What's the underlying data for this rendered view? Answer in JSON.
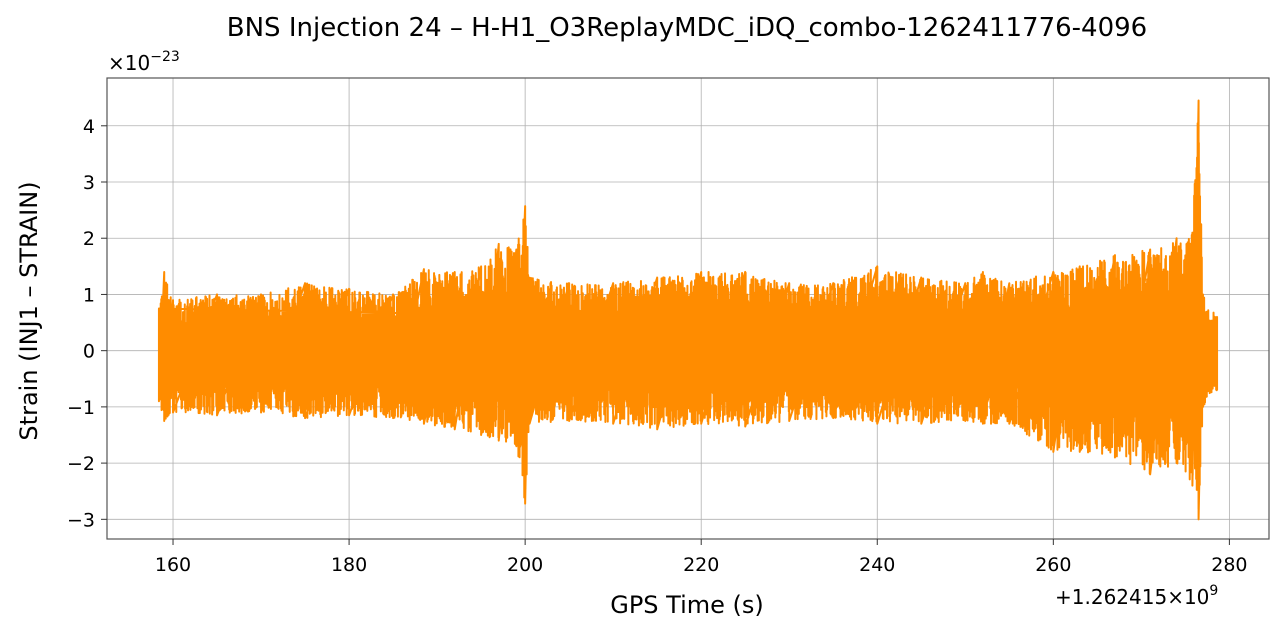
{
  "chart_data": {
    "type": "line",
    "title": "BNS Injection 24 – H-H1_O3ReplayMDC_iDQ_combo-1262411776-4096",
    "xlabel": "GPS Time (s)",
    "ylabel": "Strain (INJ1 – STRAIN)",
    "x_offset_text": "+1.262415×10^9",
    "y_scale_text": "×10^−23",
    "xlim": [
      152.5,
      284.5
    ],
    "ylim": [
      -3.35,
      4.85
    ],
    "x_ticks": [
      160,
      180,
      200,
      220,
      240,
      260,
      280
    ],
    "y_ticks": [
      -3,
      -2,
      -1,
      0,
      1,
      2,
      3,
      4
    ],
    "x_tick_labels": [
      "160",
      "180",
      "200",
      "220",
      "240",
      "260",
      "280"
    ],
    "y_tick_labels": [
      "−3",
      "−2",
      "−1",
      "0",
      "1",
      "2",
      "3",
      "4"
    ],
    "grid": true,
    "series": [
      {
        "color": "#ff8c00",
        "x_start": 158.4,
        "x_end": 278.6,
        "envelope": [
          {
            "x": 158.4,
            "upper": 0.75,
            "lower": -0.9
          },
          {
            "x": 159.0,
            "upper": 1.4,
            "lower": -1.25
          },
          {
            "x": 160.0,
            "upper": 0.9,
            "lower": -1.1
          },
          {
            "x": 165.0,
            "upper": 1.0,
            "lower": -1.15
          },
          {
            "x": 170.0,
            "upper": 1.0,
            "lower": -1.1
          },
          {
            "x": 175.0,
            "upper": 1.2,
            "lower": -1.2
          },
          {
            "x": 180.0,
            "upper": 1.1,
            "lower": -1.15
          },
          {
            "x": 185.0,
            "upper": 1.0,
            "lower": -1.2
          },
          {
            "x": 188.5,
            "upper": 1.45,
            "lower": -1.3
          },
          {
            "x": 192.0,
            "upper": 1.4,
            "lower": -1.4
          },
          {
            "x": 195.0,
            "upper": 1.5,
            "lower": -1.5
          },
          {
            "x": 197.0,
            "upper": 1.9,
            "lower": -1.6
          },
          {
            "x": 199.0,
            "upper": 1.8,
            "lower": -1.7
          },
          {
            "x": 200.0,
            "upper": 2.57,
            "lower": -2.72
          },
          {
            "x": 200.5,
            "upper": 1.3,
            "lower": -1.3
          },
          {
            "x": 205.0,
            "upper": 1.2,
            "lower": -1.25
          },
          {
            "x": 210.0,
            "upper": 1.2,
            "lower": -1.3
          },
          {
            "x": 215.0,
            "upper": 1.3,
            "lower": -1.4
          },
          {
            "x": 220.0,
            "upper": 1.4,
            "lower": -1.3
          },
          {
            "x": 225.0,
            "upper": 1.4,
            "lower": -1.35
          },
          {
            "x": 230.0,
            "upper": 1.2,
            "lower": -1.25
          },
          {
            "x": 235.0,
            "upper": 1.2,
            "lower": -1.2
          },
          {
            "x": 240.0,
            "upper": 1.5,
            "lower": -1.3
          },
          {
            "x": 245.0,
            "upper": 1.3,
            "lower": -1.3
          },
          {
            "x": 250.0,
            "upper": 1.2,
            "lower": -1.25
          },
          {
            "x": 252.0,
            "upper": 1.4,
            "lower": -1.3
          },
          {
            "x": 255.0,
            "upper": 1.2,
            "lower": -1.3
          },
          {
            "x": 260.0,
            "upper": 1.4,
            "lower": -1.8
          },
          {
            "x": 263.0,
            "upper": 1.5,
            "lower": -1.8
          },
          {
            "x": 267.0,
            "upper": 1.7,
            "lower": -1.9
          },
          {
            "x": 271.0,
            "upper": 1.8,
            "lower": -2.2
          },
          {
            "x": 274.0,
            "upper": 2.0,
            "lower": -2.0
          },
          {
            "x": 275.8,
            "upper": 2.1,
            "lower": -2.4
          },
          {
            "x": 276.5,
            "upper": 4.45,
            "lower": -3.0
          },
          {
            "x": 277.0,
            "upper": 1.0,
            "lower": -1.0
          },
          {
            "x": 278.6,
            "upper": 0.6,
            "lower": -0.7
          }
        ]
      }
    ]
  }
}
